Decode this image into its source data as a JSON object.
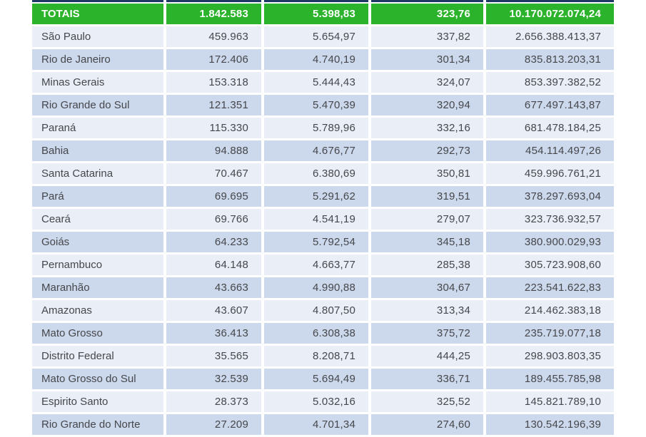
{
  "colors": {
    "totals_green": "#2ab32b",
    "top_strip_navy": "#1f3864",
    "row_light": "#e9eef7",
    "row_dark": "#ccd8eb",
    "text": "#45474c"
  },
  "chart_data": {
    "type": "table",
    "totals_row": {
      "label": "TOTAIS",
      "values": [
        "1.842.583",
        "5.398,83",
        "323,76",
        "10.170.072.074,24"
      ]
    },
    "rows": [
      {
        "name": "São Paulo",
        "values": [
          "459.963",
          "5.654,97",
          "337,82",
          "2.656.388.413,37"
        ]
      },
      {
        "name": "Rio de Janeiro",
        "values": [
          "172.406",
          "4.740,19",
          "301,34",
          "835.813.203,31"
        ]
      },
      {
        "name": "Minas Gerais",
        "values": [
          "153.318",
          "5.444,43",
          "324,07",
          "853.397.382,52"
        ]
      },
      {
        "name": "Rio Grande do Sul",
        "values": [
          "121.351",
          "5.470,39",
          "320,94",
          "677.497.143,87"
        ]
      },
      {
        "name": "Paraná",
        "values": [
          "115.330",
          "5.789,96",
          "332,16",
          "681.478.184,25"
        ]
      },
      {
        "name": "Bahia",
        "values": [
          "94.888",
          "4.676,77",
          "292,73",
          "454.114.497,26"
        ]
      },
      {
        "name": "Santa Catarina",
        "values": [
          "70.467",
          "6.380,69",
          "350,81",
          "459.996.761,21"
        ]
      },
      {
        "name": "Pará",
        "values": [
          "69.695",
          "5.291,62",
          "319,51",
          "378.297.693,04"
        ]
      },
      {
        "name": "Ceará",
        "values": [
          "69.766",
          "4.541,19",
          "279,07",
          "323.736.932,57"
        ]
      },
      {
        "name": "Goiás",
        "values": [
          "64.233",
          "5.792,54",
          "345,18",
          "380.900.029,93"
        ]
      },
      {
        "name": "Pernambuco",
        "values": [
          "64.148",
          "4.663,77",
          "285,38",
          "305.723.908,60"
        ]
      },
      {
        "name": "Maranhão",
        "values": [
          "43.663",
          "4.990,88",
          "304,67",
          "223.541.622,83"
        ]
      },
      {
        "name": "Amazonas",
        "values": [
          "43.607",
          "4.807,50",
          "313,34",
          "214.462.383,18"
        ]
      },
      {
        "name": "Mato Grosso",
        "values": [
          "36.413",
          "6.308,38",
          "375,72",
          "235.719.077,18"
        ]
      },
      {
        "name": "Distrito Federal",
        "values": [
          "35.565",
          "8.208,71",
          "444,25",
          "298.903.803,35"
        ]
      },
      {
        "name": "Mato Grosso do Sul",
        "values": [
          "32.539",
          "5.694,49",
          "336,71",
          "189.455.785,98"
        ]
      },
      {
        "name": "Espirito Santo",
        "values": [
          "28.373",
          "5.032,16",
          "325,52",
          "145.821.789,10"
        ]
      },
      {
        "name": "Rio Grande do Norte",
        "values": [
          "27.209",
          "4.701,34",
          "274,60",
          "130.542.196,39"
        ]
      }
    ]
  }
}
